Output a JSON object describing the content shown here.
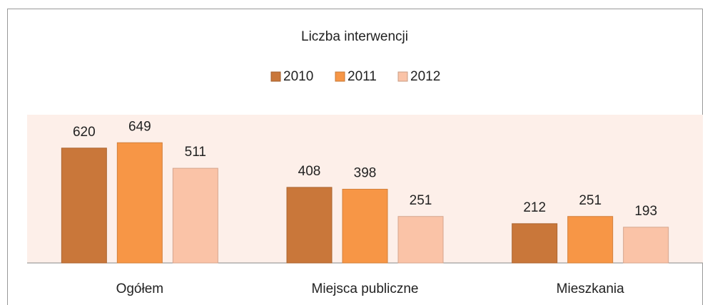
{
  "chart_data": {
    "type": "bar",
    "title": "Liczba interwencji",
    "categories": [
      "Ogółem",
      "Miejsca publiczne",
      "Mieszkania"
    ],
    "series": [
      {
        "name": "2010",
        "color": "#c9773a",
        "values": [
          620,
          408,
          212
        ]
      },
      {
        "name": "2011",
        "color": "#f79646",
        "values": [
          649,
          398,
          251
        ]
      },
      {
        "name": "2012",
        "color": "#fac3a7",
        "values": [
          511,
          251,
          193
        ]
      }
    ],
    "ylim": [
      0,
      800
    ],
    "legend": "top",
    "plot_background": "#fdefe9"
  }
}
